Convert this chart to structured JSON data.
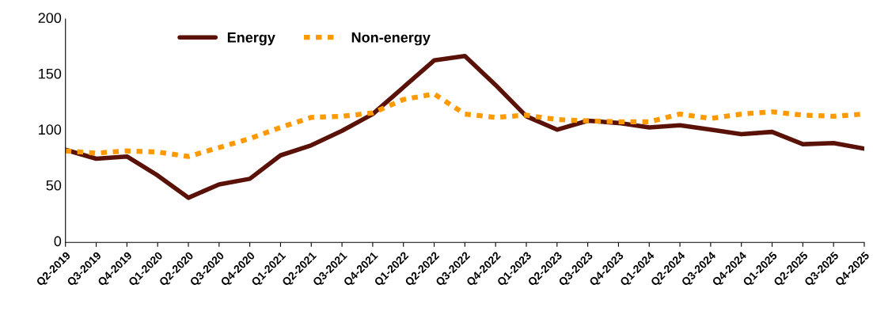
{
  "chart_data": {
    "type": "line",
    "categories": [
      "Q2-2019",
      "Q3-2019",
      "Q4-2019",
      "Q1-2020",
      "Q2-2020",
      "Q3-2020",
      "Q4-2020",
      "Q1-2021",
      "Q2-2021",
      "Q3-2021",
      "Q4-2021",
      "Q1-2022",
      "Q2-2022",
      "Q3-2022",
      "Q4-2022",
      "Q1-2023",
      "Q2-2023",
      "Q3-2023",
      "Q4-2023",
      "Q1-2024",
      "Q2-2024",
      "Q3-2024",
      "Q4-2024",
      "Q1-2025",
      "Q2-2025",
      "Q3-2025",
      "Q4-2025"
    ],
    "series": [
      {
        "name": "Energy",
        "color": "#5a1208",
        "line_style": "solid",
        "values": [
          83,
          75,
          77,
          60,
          40,
          52,
          57,
          78,
          87,
          100,
          115,
          139,
          163,
          167,
          141,
          113,
          101,
          109,
          107,
          103,
          105,
          101,
          97,
          99,
          88,
          89,
          84
        ]
      },
      {
        "name": "Non-energy",
        "color": "#ff9900",
        "line_style": "dotted",
        "values": [
          82,
          80,
          82,
          81,
          77,
          85,
          93,
          103,
          112,
          113,
          116,
          128,
          133,
          115,
          112,
          114,
          110,
          109,
          108,
          108,
          115,
          111,
          115,
          117,
          114,
          113,
          115
        ]
      }
    ],
    "ylim": [
      0,
      200
    ],
    "yticks": [
      0,
      50,
      100,
      150,
      200
    ],
    "grid": false,
    "legend": "top",
    "marker": "none"
  }
}
